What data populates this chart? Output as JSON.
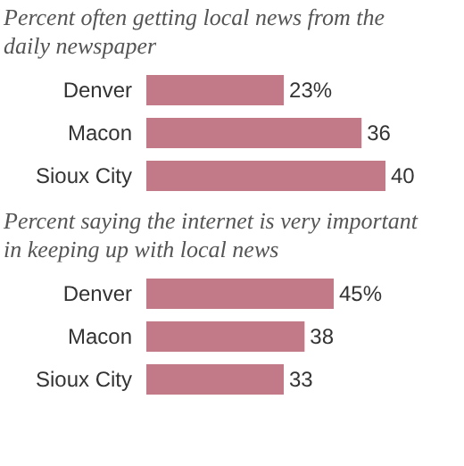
{
  "chart_data": [
    {
      "type": "bar",
      "orientation": "horizontal",
      "title": "Percent often getting local news from the daily newspaper",
      "categories": [
        "Denver",
        "Macon",
        "Sioux City"
      ],
      "values": [
        23,
        36,
        40
      ],
      "value_labels": [
        "23%",
        "36",
        "40"
      ],
      "color": "#c27a88",
      "grid": false,
      "tick_labels": "y"
    },
    {
      "type": "bar",
      "orientation": "horizontal",
      "title": "Percent saying the internet is very important in keeping up with local news",
      "categories": [
        "Denver",
        "Macon",
        "Sioux City"
      ],
      "values": [
        45,
        38,
        33
      ],
      "value_labels": [
        "45%",
        "38",
        "33"
      ],
      "color": "#c27a88",
      "grid": false,
      "tick_labels": "y"
    }
  ]
}
